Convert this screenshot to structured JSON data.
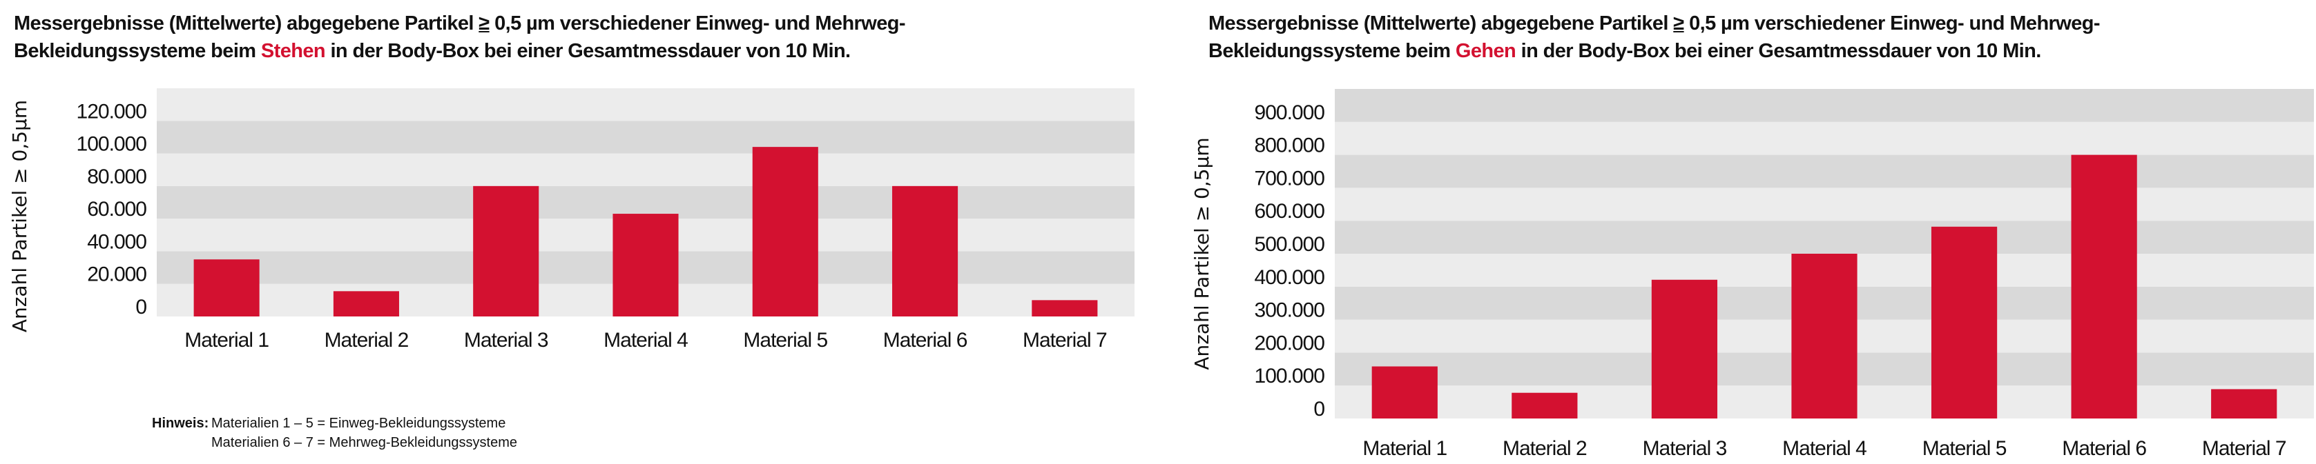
{
  "colors": {
    "bar": "#d31130",
    "band_light": "#ececec",
    "band_dark": "#d9d9d9",
    "highlight": "#d31130"
  },
  "chart_data": [
    {
      "type": "bar",
      "title_parts": {
        "pre": "Messergebnisse (Mittelwerte) abgegebene Partikel ",
        "ge": "≥",
        "mid": " 0,5 µm verschiedener Einweg- und Mehrweg-",
        "line2_pre": "Bekleidungssysteme beim ",
        "highlight": "Stehen",
        "line2_post": " in der Body-Box bei einer Gesamtmessdauer von 10 Min."
      },
      "ylabel": "Anzahl Partikel ≥ 0,5µm",
      "xlabel": "",
      "categories": [
        "Material 1",
        "Material 2",
        "Material 3",
        "Material 4",
        "Material 5",
        "Material 6",
        "Material 7"
      ],
      "values": [
        35000,
        15500,
        80000,
        63000,
        104000,
        80000,
        10000
      ],
      "ylim": [
        0,
        140000
      ],
      "yticks": [
        0,
        20000,
        40000,
        60000,
        80000,
        100000,
        120000
      ],
      "ytick_labels": [
        "0",
        "20.000",
        "40.000",
        "60.000",
        "80.000",
        "100.000",
        "120.000"
      ],
      "grid": "alternating bands",
      "legend": "none"
    },
    {
      "type": "bar",
      "title_parts": {
        "pre": "Messergebnisse (Mittelwerte) abgegebene Partikel ",
        "ge": "≥",
        "mid": " 0,5 µm verschiedener Einweg- und Mehrweg-",
        "line2_pre": "Bekleidungssysteme beim ",
        "highlight": "Gehen",
        "line2_post": " in der Body-Box bei einer Gesamtmessdauer von 10 Min."
      },
      "ylabel": "Anzahl Partikel ≥ 0,5µm",
      "xlabel": "",
      "categories": [
        "Material 1",
        "Material 2",
        "Material 3",
        "Material 4",
        "Material 5",
        "Material 6",
        "Material 7"
      ],
      "values": [
        158000,
        78000,
        421000,
        500000,
        582000,
        800000,
        89000
      ],
      "ylim": [
        0,
        1000000
      ],
      "yticks": [
        0,
        100000,
        200000,
        300000,
        400000,
        500000,
        600000,
        700000,
        800000,
        900000
      ],
      "ytick_labels": [
        "0",
        "100.000",
        "200.000",
        "300.000",
        "400.000",
        "500.000",
        "600.000",
        "700.000",
        "800.000",
        "900.000"
      ],
      "grid": "alternating bands",
      "legend": "none"
    }
  ],
  "note": {
    "label": "Hinweis:",
    "line1": "Materialien 1 – 5 = Einweg-Bekleidungssysteme",
    "line2": "Materialien 6 – 7 = Mehrweg-Bekleidungssysteme"
  }
}
